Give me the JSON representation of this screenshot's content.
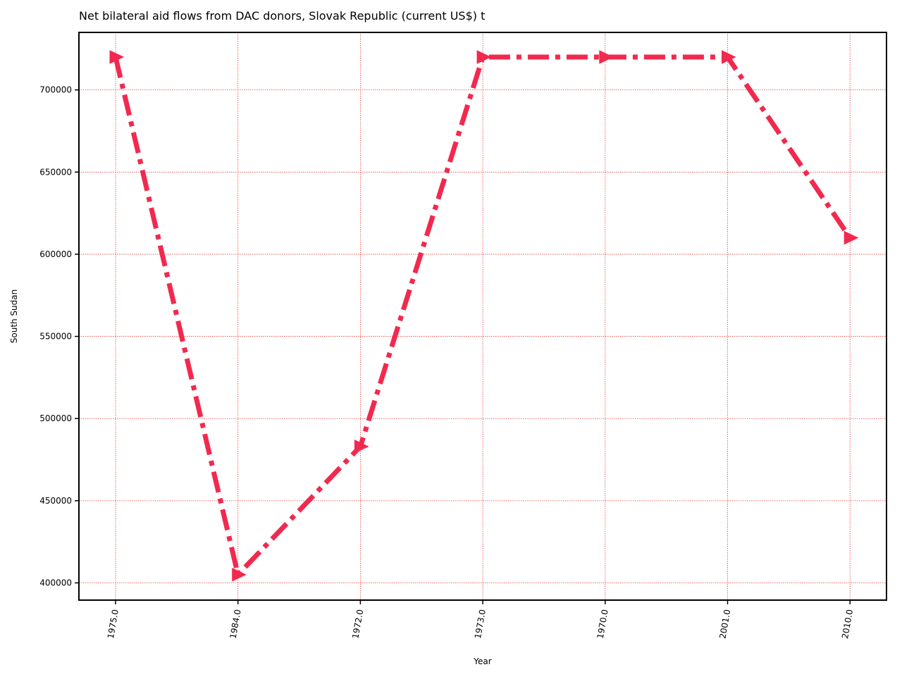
{
  "chart_data": {
    "type": "line",
    "title": "Net bilateral aid flows from DAC donors, Slovak Republic (current US$) t",
    "xlabel": "Year",
    "ylabel": "South Sudan",
    "categories": [
      "1975.0",
      "1984.0",
      "1972.0",
      "1973.0",
      "1970.0",
      "2001.0",
      "2010.0"
    ],
    "series": [
      {
        "values": [
          720000,
          405000,
          483000,
          720000,
          720000,
          720000,
          610000
        ]
      }
    ],
    "yticks": [
      400000,
      450000,
      500000,
      550000,
      600000,
      650000,
      700000
    ],
    "ylim": [
      389500,
      735000
    ],
    "grid": true,
    "line_style": "dash-dot",
    "marker": "triangle-right",
    "colors": {
      "line": "#f2294e",
      "grid": "#e8413b"
    }
  }
}
